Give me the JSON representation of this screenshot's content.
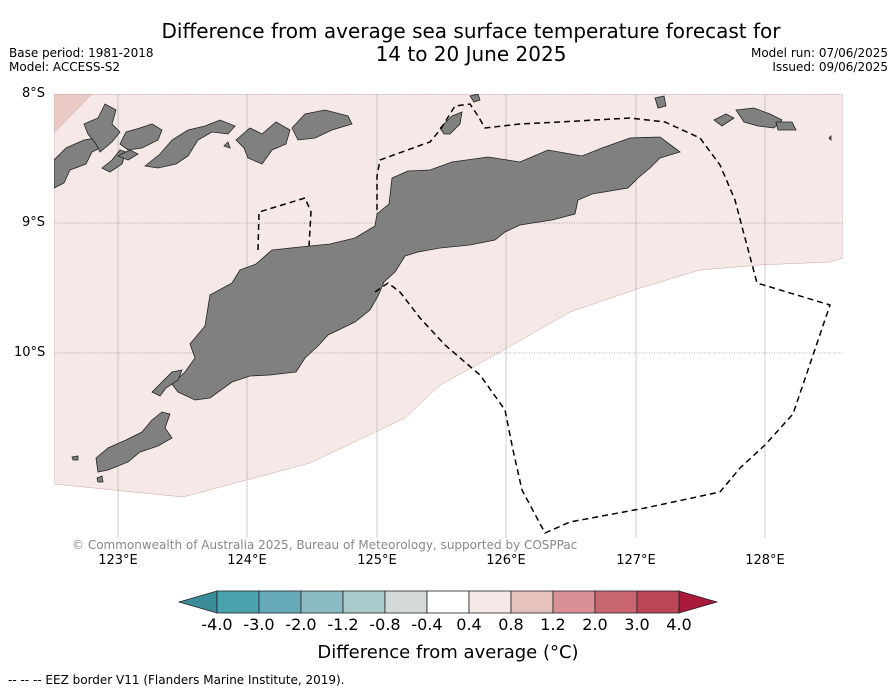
{
  "title_line1": "Difference from average sea surface temperature forecast for",
  "title_line2": "14 to 20 June 2025",
  "base_period": "Base period: 1981-2018",
  "model": "Model: ACCESS-S2",
  "model_run": "Model run: 07/06/2025",
  "issued": "Issued: 09/06/2025",
  "lat_labels": [
    "8°S",
    "9°S",
    "10°S"
  ],
  "lon_labels": [
    "123°E",
    "124°E",
    "125°E",
    "126°E",
    "127°E",
    "128°E"
  ],
  "copyright": "© Commonwealth of Australia 2025, Bureau of Meteorology, supported by COSPPac",
  "colorbar": {
    "ticks": [
      "-4.0",
      "-3.0",
      "-2.0",
      "-1.2",
      "-0.8",
      "-0.4",
      "0.4",
      "0.8",
      "1.2",
      "2.0",
      "3.0",
      "4.0"
    ],
    "colors": [
      "#4ba3b0",
      "#67aab7",
      "#8bbcc5",
      "#a9c9cc",
      "#d2d9d7",
      "#ffffff",
      "#f6e8e6",
      "#e5c2bb",
      "#d99096",
      "#c8666f",
      "#bb4655"
    ],
    "under_color": "#3a8c99",
    "over_color": "#a8193a",
    "label": "Difference from average (°C)"
  },
  "colors": {
    "land": "#808080",
    "anomaly_0_4_to_0_8": "#f5e8e6",
    "anomaly_0_8_to_1_2": "#e9c9c3"
  },
  "eez_note": "--  --  -- EEZ border V11 (Flanders Marine Institute, 2019)."
}
